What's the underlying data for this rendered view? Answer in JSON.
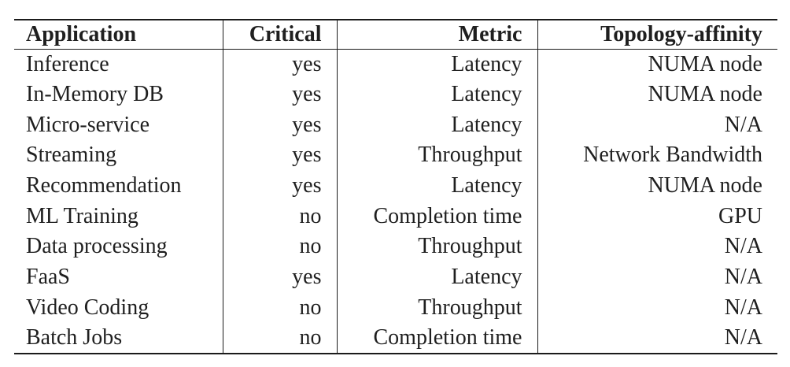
{
  "colors": {
    "text": "#1f1f1f",
    "rule": "#1b1b1b",
    "background": "#ffffff"
  },
  "table": {
    "columns": [
      {
        "key": "application",
        "label": "Application",
        "align": "left"
      },
      {
        "key": "critical",
        "label": "Critical",
        "align": "right"
      },
      {
        "key": "metric",
        "label": "Metric",
        "align": "right"
      },
      {
        "key": "topology_affinity",
        "label": "Topology-affinity",
        "align": "right"
      }
    ],
    "rows": [
      [
        "Inference",
        "yes",
        "Latency",
        "NUMA node"
      ],
      [
        "In-Memory DB",
        "yes",
        "Latency",
        "NUMA node"
      ],
      [
        "Micro-service",
        "yes",
        "Latency",
        "N/A"
      ],
      [
        "Streaming",
        "yes",
        "Throughput",
        "Network Bandwidth"
      ],
      [
        "Recommendation",
        "yes",
        "Latency",
        "NUMA node"
      ],
      [
        "ML Training",
        "no",
        "Completion time",
        "GPU"
      ],
      [
        "Data processing",
        "no",
        "Throughput",
        "N/A"
      ],
      [
        "FaaS",
        "yes",
        "Latency",
        "N/A"
      ],
      [
        "Video Coding",
        "no",
        "Throughput",
        "N/A"
      ],
      [
        "Batch Jobs",
        "no",
        "Completion time",
        "N/A"
      ]
    ]
  },
  "chart_data": {
    "type": "table",
    "columns": [
      "Application",
      "Critical",
      "Metric",
      "Topology-affinity"
    ],
    "rows": [
      [
        "Inference",
        "yes",
        "Latency",
        "NUMA node"
      ],
      [
        "In-Memory DB",
        "yes",
        "Latency",
        "NUMA node"
      ],
      [
        "Micro-service",
        "yes",
        "Latency",
        "N/A"
      ],
      [
        "Streaming",
        "yes",
        "Throughput",
        "Network Bandwidth"
      ],
      [
        "Recommendation",
        "yes",
        "Latency",
        "NUMA node"
      ],
      [
        "ML Training",
        "no",
        "Completion time",
        "GPU"
      ],
      [
        "Data processing",
        "no",
        "Throughput",
        "N/A"
      ],
      [
        "FaaS",
        "yes",
        "Latency",
        "N/A"
      ],
      [
        "Video Coding",
        "no",
        "Throughput",
        "N/A"
      ],
      [
        "Batch Jobs",
        "no",
        "Completion time",
        "N/A"
      ]
    ]
  }
}
